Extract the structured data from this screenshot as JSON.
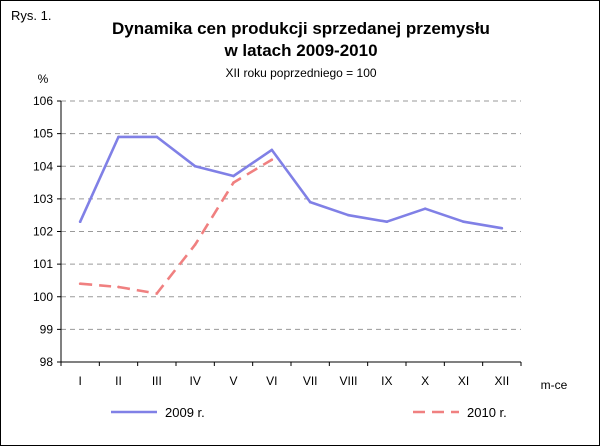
{
  "figure_label": "Rys. 1.",
  "chart_data": {
    "type": "line",
    "title_line1": "Dynamika cen produkcji sprzedanej przemysłu",
    "title_line2": "w latach 2009-2010",
    "subtitle": "XII roku poprzedniego = 100",
    "ylabel": "%",
    "xlabel": "m-ce",
    "ylim": [
      98,
      106
    ],
    "yticks": [
      98,
      99,
      100,
      101,
      102,
      103,
      104,
      105,
      106
    ],
    "grid": "horizontal dashed",
    "legend_position": "bottom",
    "categories": [
      "I",
      "II",
      "III",
      "IV",
      "V",
      "VI",
      "VII",
      "VIII",
      "IX",
      "X",
      "XI",
      "XII"
    ],
    "series": [
      {
        "name": "2009 r.",
        "color": "#8080e6",
        "style": "solid",
        "values": [
          102.3,
          104.9,
          104.9,
          104.0,
          103.7,
          104.5,
          102.9,
          102.5,
          102.3,
          102.7,
          102.3,
          102.1
        ]
      },
      {
        "name": "2010 r.",
        "color": "#f08080",
        "style": "dashed",
        "values": [
          100.4,
          100.3,
          100.1,
          101.6,
          103.5,
          104.2,
          null,
          null,
          null,
          null,
          null,
          null
        ]
      }
    ]
  }
}
